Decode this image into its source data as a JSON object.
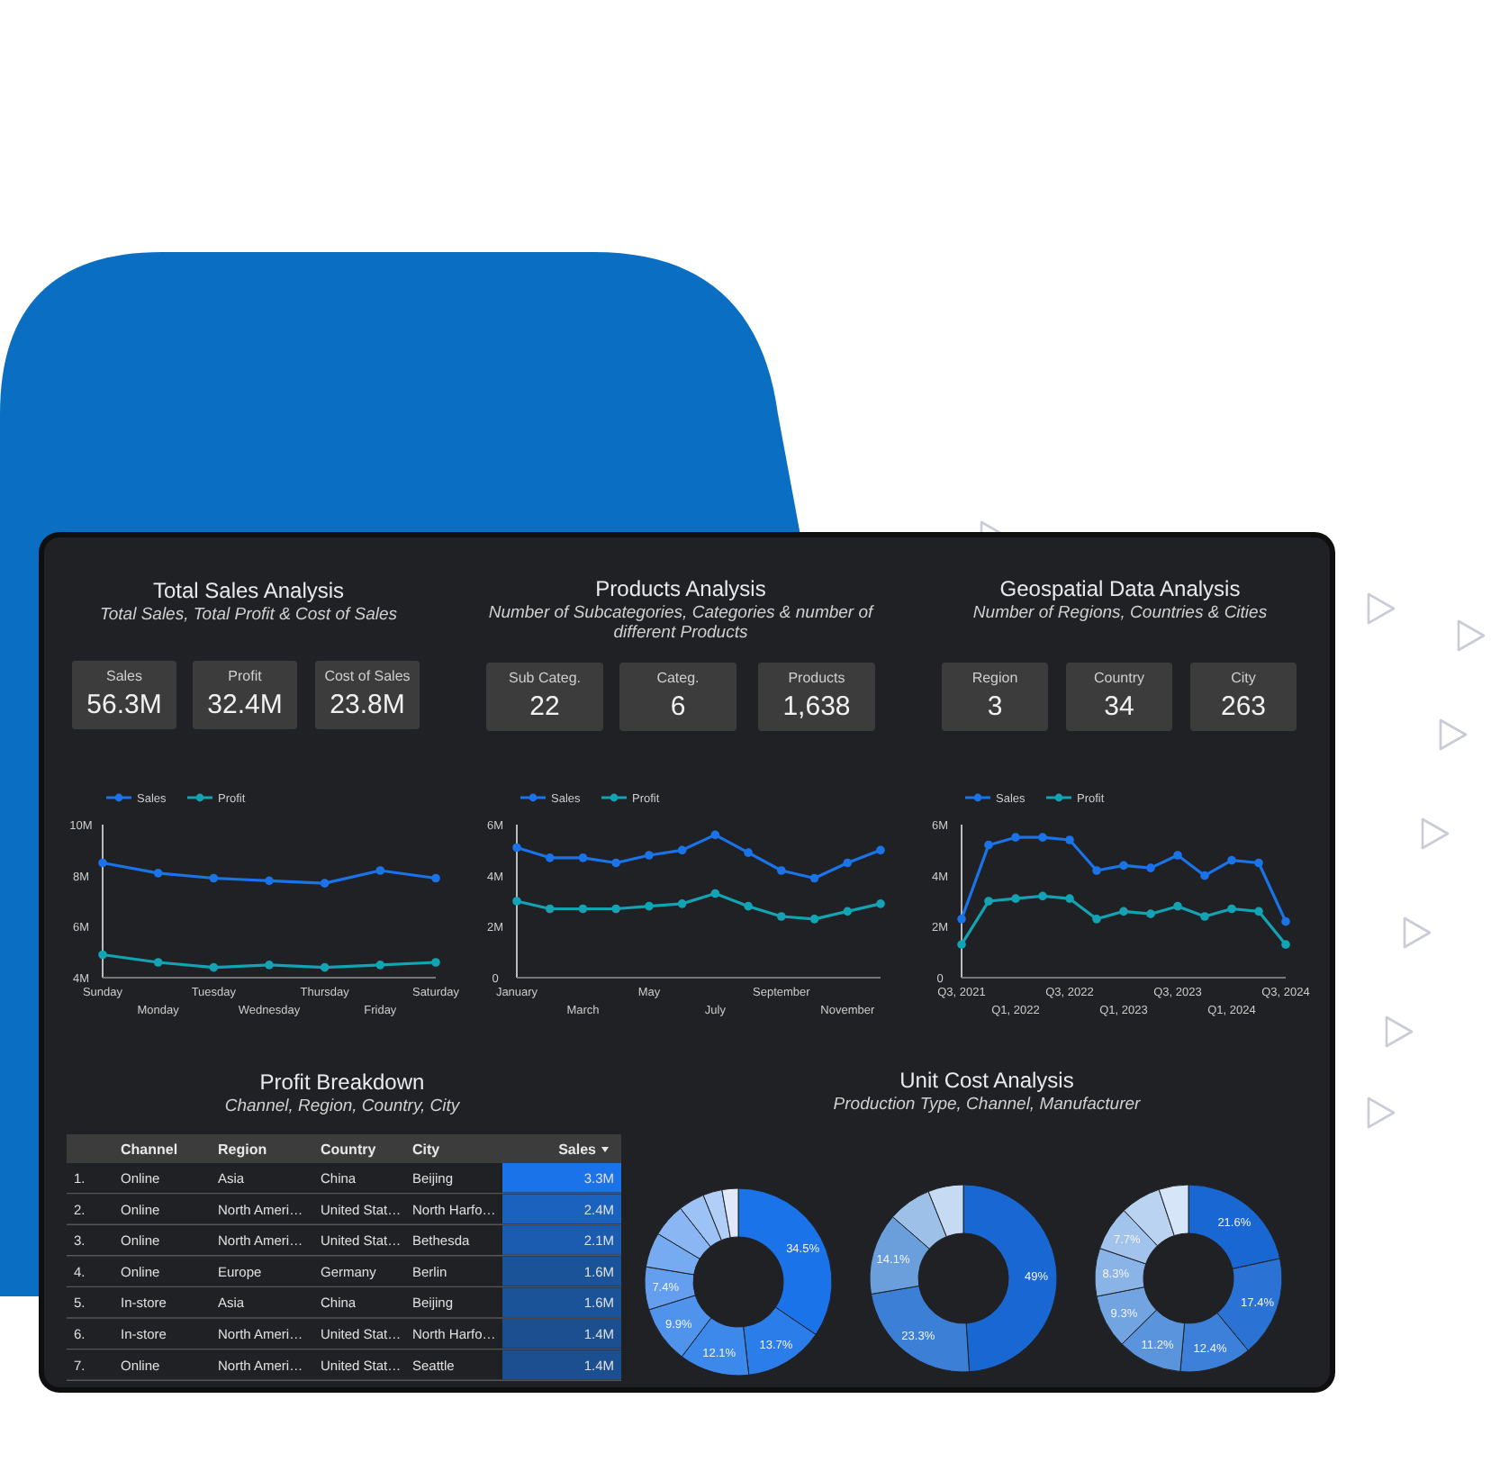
{
  "chart_data": [
    {
      "type": "other",
      "title": "Total Sales Analysis",
      "subtitle": "Total Sales, Total Profit & Cost of Sales",
      "annotations": [
        "Sales",
        "56.3M",
        "Profit",
        "32.4M",
        "Cost of Sales",
        "23.8M"
      ]
    },
    {
      "type": "line",
      "categories": [
        "Sunday",
        "Monday",
        "Tuesday",
        "Wednesday",
        "Thursday",
        "Friday",
        "Saturday"
      ],
      "ylim": [
        4,
        10
      ],
      "yticks": [
        {
          "value": 4,
          "label": "4M"
        },
        {
          "value": 6,
          "label": "6M"
        },
        {
          "value": 8,
          "label": "8M"
        },
        {
          "value": 10,
          "label": "10M"
        }
      ],
      "legend": "top left",
      "marker": "circle",
      "line_style": "solid",
      "grid": false,
      "series": [
        {
          "name": "Sales",
          "color": "#1a73e8",
          "values": [
            8.5,
            8.1,
            7.9,
            7.8,
            7.7,
            8.2,
            7.9
          ]
        },
        {
          "name": "Profit",
          "color": "#12a4b4",
          "values": [
            4.9,
            4.6,
            4.4,
            4.5,
            4.4,
            4.5,
            4.6
          ]
        }
      ]
    },
    {
      "type": "other",
      "title": "Products Analysis",
      "subtitle": "Number of Subcategories, Categories & number of different Products",
      "annotations": [
        "Sub Categ.",
        "22",
        "Categ.",
        "6",
        "Products",
        "1,638"
      ]
    },
    {
      "type": "line",
      "categories": [
        "January",
        null,
        "March",
        null,
        "May",
        null,
        "July",
        null,
        "September",
        null,
        "November",
        null
      ],
      "ylim": [
        0,
        6
      ],
      "yticks": [
        0,
        {
          "value": 2,
          "label": "2M"
        },
        {
          "value": 4,
          "label": "4M"
        },
        {
          "value": 6,
          "label": "6M"
        }
      ],
      "legend": "top left",
      "marker": "circle",
      "line_style": "solid",
      "grid": false,
      "series": [
        {
          "name": "Sales",
          "color": "#1a73e8",
          "values": [
            5.1,
            4.7,
            4.7,
            4.5,
            4.8,
            5.0,
            5.6,
            4.9,
            4.2,
            3.9,
            4.5,
            5.0
          ]
        },
        {
          "name": "Profit",
          "color": "#12a4b4",
          "values": [
            3.0,
            2.7,
            2.7,
            2.7,
            2.8,
            2.9,
            3.3,
            2.8,
            2.4,
            2.3,
            2.6,
            2.9
          ]
        }
      ]
    },
    {
      "type": "other",
      "title": "Geospatial Data Analysis",
      "subtitle": "Number of Regions, Countries & Cities",
      "annotations": [
        "Region",
        "3",
        "Country",
        "34",
        "City",
        "263"
      ]
    },
    {
      "type": "line",
      "categories": [
        "Q3, 2021",
        null,
        "Q1, 2022",
        null,
        "Q3, 2022",
        null,
        "Q1, 2023",
        null,
        "Q3, 2023",
        null,
        "Q1, 2024",
        null,
        "Q3, 2024"
      ],
      "ylim": [
        0,
        6
      ],
      "yticks": [
        0,
        {
          "value": 2,
          "label": "2M"
        },
        {
          "value": 4,
          "label": "4M"
        },
        {
          "value": 6,
          "label": "6M"
        }
      ],
      "legend": "top left",
      "marker": "circle",
      "line_style": "solid",
      "grid": false,
      "series": [
        {
          "name": "Sales",
          "color": "#1a73e8",
          "values": [
            2.3,
            5.2,
            5.5,
            5.5,
            5.4,
            4.2,
            4.4,
            4.3,
            4.8,
            4.0,
            4.6,
            4.5,
            2.2
          ]
        },
        {
          "name": "Profit",
          "color": "#12a4b4",
          "values": [
            1.3,
            3.0,
            3.1,
            3.2,
            3.1,
            2.3,
            2.6,
            2.5,
            2.8,
            2.4,
            2.7,
            2.6,
            1.3
          ]
        }
      ]
    },
    {
      "type": "heatmap",
      "title": "Profit Breakdown",
      "subtitle": "Channel, Region, Country, City",
      "categories": [
        "Channel",
        "Region",
        "Country",
        "City",
        "Sales"
      ],
      "y_categories": [
        "1.",
        "2.",
        "3.",
        "4.",
        "5.",
        "6.",
        "7."
      ],
      "cells": [
        [
          null,
          null,
          null,
          null,
          3.3
        ],
        [
          null,
          null,
          null,
          null,
          2.4
        ],
        [
          null,
          null,
          null,
          null,
          2.1
        ],
        [
          null,
          null,
          null,
          null,
          1.6
        ],
        [
          null,
          null,
          null,
          null,
          1.6
        ],
        [
          null,
          null,
          null,
          null,
          1.4
        ],
        [
          null,
          null,
          null,
          null,
          1.4
        ]
      ],
      "cell_labels": [
        [
          "Online",
          "Asia",
          "China",
          "Beijing",
          "3.3M"
        ],
        [
          "Online",
          "North Ameri…",
          "United Stat…",
          "North Harfo…",
          "2.4M"
        ],
        [
          "Online",
          "North Ameri…",
          "United Stat…",
          "Bethesda",
          "2.1M"
        ],
        [
          "Online",
          "Europe",
          "Germany",
          "Berlin",
          "1.6M"
        ],
        [
          "In-store",
          "Asia",
          "China",
          "Beijing",
          "1.6M"
        ],
        [
          "In-store",
          "North Ameri…",
          "United Stat…",
          "North Harfo…",
          "1.4M"
        ],
        [
          "Online",
          "North Ameri…",
          "United Stat…",
          "Seattle",
          "1.4M"
        ]
      ]
    },
    {
      "type": "donut",
      "categories": [
        null,
        null,
        null,
        null,
        null,
        null,
        null,
        null,
        null,
        null
      ],
      "values": [
        34.5,
        13.7,
        12.1,
        9.9,
        7.4,
        6.0,
        5.8,
        4.5,
        3.3,
        2.8
      ],
      "value_labels": [
        "34.5%",
        "13.7%",
        "12.1%",
        "9.9%",
        "7.4%",
        null,
        null,
        null,
        null,
        null
      ],
      "colors": [
        "#1a73e8",
        "#2b7de9",
        "#3d88eb",
        "#5093ed",
        "#639eef",
        "#76aaf1",
        "#8ab6f3",
        "#9dc2f5",
        "#b1cef7",
        "#dfe9fa"
      ]
    },
    {
      "type": "donut",
      "title": "Unit Cost Analysis",
      "subtitle": "Production Type, Channel, Manufacturer",
      "categories": [
        null,
        null,
        null,
        null,
        null
      ],
      "values": [
        49,
        23.3,
        14.1,
        7.5,
        6.1
      ],
      "value_labels": [
        "49%",
        "23.3%",
        "14.1%",
        null,
        null
      ],
      "colors": [
        "#1967d2",
        "#3b80d6",
        "#6a9fdc",
        "#9cc0e8",
        "#c6dbf3"
      ]
    },
    {
      "type": "donut",
      "categories": [
        null,
        null,
        null,
        null,
        null,
        null,
        null,
        null,
        null
      ],
      "values": [
        21.6,
        17.4,
        12.4,
        11.2,
        9.3,
        8.3,
        7.7,
        7.0,
        5.1
      ],
      "value_labels": [
        "21.6%",
        "17.4%",
        "12.4%",
        "11.2%",
        "9.3%",
        "8.3%",
        "7.7%",
        null,
        null
      ],
      "colors": [
        "#1967d2",
        "#2a73d5",
        "#3c80d9",
        "#5a94dd",
        "#72a4e2",
        "#8ab4e7",
        "#a2c3ec",
        "#bad3f1",
        "#d6e6f8"
      ]
    }
  ]
}
